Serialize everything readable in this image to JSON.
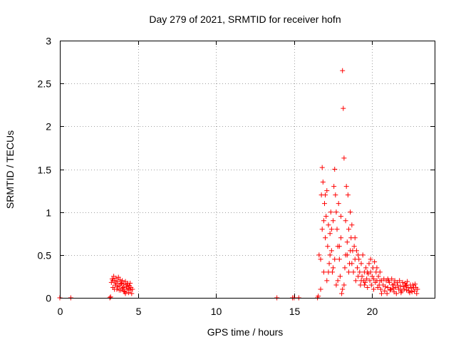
{
  "chart_data": {
    "type": "scatter",
    "title": "Day 279 of 2021, SRMTID for receiver hofn",
    "xlabel": "GPS time / hours",
    "ylabel": "SRMTID / TECUs",
    "xlim": [
      0,
      24
    ],
    "ylim": [
      0,
      3
    ],
    "xticks": [
      0,
      5,
      10,
      15,
      20
    ],
    "xtick_labels": [
      "0",
      "5",
      "10",
      "15",
      "20"
    ],
    "yticks": [
      0,
      0.5,
      1,
      1.5,
      2,
      2.5,
      3
    ],
    "ytick_labels": [
      "0",
      "0.5",
      "1",
      "1.5",
      "2",
      "2.5",
      "3"
    ],
    "grid": true,
    "marker": "+",
    "color": "#ff0000",
    "series": [
      {
        "name": "SRMTID",
        "points": [
          [
            0.0,
            0.0
          ],
          [
            0.7,
            0.0
          ],
          [
            3.2,
            0.0
          ],
          [
            3.25,
            0.01
          ],
          [
            13.9,
            0.0
          ],
          [
            14.9,
            0.0
          ],
          [
            15.0,
            0.0
          ],
          [
            15.3,
            0.0
          ],
          [
            16.5,
            0.0
          ],
          [
            16.55,
            0.02
          ],
          [
            3.3,
            0.18
          ],
          [
            3.35,
            0.22
          ],
          [
            3.4,
            0.12
          ],
          [
            3.45,
            0.25
          ],
          [
            3.5,
            0.2
          ],
          [
            3.55,
            0.15
          ],
          [
            3.6,
            0.23
          ],
          [
            3.65,
            0.1
          ],
          [
            3.7,
            0.19
          ],
          [
            3.75,
            0.24
          ],
          [
            3.8,
            0.14
          ],
          [
            3.85,
            0.21
          ],
          [
            3.9,
            0.09
          ],
          [
            3.95,
            0.17
          ],
          [
            4.0,
            0.2
          ],
          [
            4.05,
            0.12
          ],
          [
            4.1,
            0.16
          ],
          [
            4.15,
            0.07
          ],
          [
            4.2,
            0.19
          ],
          [
            4.25,
            0.13
          ],
          [
            4.3,
            0.1
          ],
          [
            4.35,
            0.17
          ],
          [
            4.4,
            0.06
          ],
          [
            4.45,
            0.14
          ],
          [
            4.5,
            0.09
          ],
          [
            4.55,
            0.12
          ],
          [
            4.6,
            0.05
          ],
          [
            4.65,
            0.1
          ],
          [
            3.5,
            0.1
          ],
          [
            3.7,
            0.13
          ],
          [
            3.9,
            0.16
          ],
          [
            4.1,
            0.08
          ],
          [
            4.3,
            0.15
          ],
          [
            4.5,
            0.17
          ],
          [
            3.4,
            0.2
          ],
          [
            3.6,
            0.17
          ],
          [
            3.8,
            0.09
          ],
          [
            4.0,
            0.11
          ],
          [
            4.2,
            0.05
          ],
          [
            4.4,
            0.11
          ],
          [
            16.6,
            0.5
          ],
          [
            16.7,
            0.45
          ],
          [
            16.75,
            1.2
          ],
          [
            16.8,
            1.52
          ],
          [
            16.85,
            1.35
          ],
          [
            16.9,
            0.9
          ],
          [
            16.95,
            1.1
          ],
          [
            17.0,
            0.7
          ],
          [
            17.05,
            0.95
          ],
          [
            17.1,
            1.25
          ],
          [
            17.15,
            0.6
          ],
          [
            17.2,
            0.85
          ],
          [
            17.25,
            0.4
          ],
          [
            17.3,
            0.75
          ],
          [
            17.35,
            1.0
          ],
          [
            17.4,
            0.55
          ],
          [
            17.45,
            0.3
          ],
          [
            17.5,
            0.9
          ],
          [
            17.55,
            1.3
          ],
          [
            17.6,
            1.5
          ],
          [
            17.65,
            1.2
          ],
          [
            17.7,
            1.0
          ],
          [
            17.75,
            0.8
          ],
          [
            17.8,
            0.6
          ],
          [
            17.85,
            1.1
          ],
          [
            17.9,
            0.45
          ],
          [
            17.95,
            0.25
          ],
          [
            18.0,
            0.7
          ],
          [
            18.05,
            0.05
          ],
          [
            18.1,
            2.65
          ],
          [
            18.15,
            2.21
          ],
          [
            18.2,
            1.63
          ],
          [
            18.25,
            0.35
          ],
          [
            18.3,
            0.9
          ],
          [
            18.35,
            1.3
          ],
          [
            18.4,
            0.5
          ],
          [
            18.45,
            1.2
          ],
          [
            18.5,
            0.8
          ],
          [
            18.55,
            0.4
          ],
          [
            18.6,
            1.0
          ],
          [
            18.65,
            0.7
          ],
          [
            18.7,
            0.85
          ],
          [
            18.75,
            0.55
          ],
          [
            18.8,
            0.3
          ],
          [
            18.85,
            0.6
          ],
          [
            18.9,
            0.45
          ],
          [
            18.95,
            0.2
          ],
          [
            19.0,
            0.55
          ],
          [
            19.05,
            0.35
          ],
          [
            19.1,
            0.25
          ],
          [
            19.15,
            0.45
          ],
          [
            19.2,
            0.3
          ],
          [
            19.25,
            0.15
          ],
          [
            19.3,
            0.4
          ],
          [
            19.35,
            0.25
          ],
          [
            19.4,
            0.5
          ],
          [
            19.45,
            0.2
          ],
          [
            19.5,
            0.3
          ],
          [
            19.55,
            0.18
          ],
          [
            19.6,
            0.35
          ],
          [
            19.65,
            0.22
          ],
          [
            19.7,
            0.12
          ],
          [
            19.75,
            0.28
          ],
          [
            19.8,
            0.4
          ],
          [
            19.85,
            0.2
          ],
          [
            19.9,
            0.3
          ],
          [
            19.95,
            0.15
          ],
          [
            20.0,
            0.25
          ],
          [
            20.05,
            0.35
          ],
          [
            20.1,
            0.22
          ],
          [
            20.15,
            0.42
          ],
          [
            20.2,
            0.18
          ],
          [
            20.25,
            0.3
          ],
          [
            20.3,
            0.2
          ],
          [
            20.35,
            0.12
          ],
          [
            20.4,
            0.25
          ],
          [
            20.45,
            0.15
          ],
          [
            20.5,
            0.3
          ],
          [
            20.55,
            0.1
          ],
          [
            20.6,
            0.2
          ],
          [
            16.7,
            0.1
          ],
          [
            16.9,
            0.3
          ],
          [
            17.1,
            0.2
          ],
          [
            17.3,
            0.5
          ],
          [
            17.5,
            0.35
          ],
          [
            17.7,
            0.15
          ],
          [
            17.9,
            0.6
          ],
          [
            18.1,
            0.1
          ],
          [
            18.3,
            0.5
          ],
          [
            18.5,
            0.3
          ],
          [
            18.7,
            0.4
          ],
          [
            18.9,
            0.7
          ],
          [
            19.1,
            0.5
          ],
          [
            19.3,
            0.2
          ],
          [
            19.5,
            0.15
          ],
          [
            19.7,
            0.3
          ],
          [
            19.9,
            0.45
          ],
          [
            20.1,
            0.1
          ],
          [
            20.3,
            0.35
          ],
          [
            20.5,
            0.2
          ],
          [
            16.8,
            0.8
          ],
          [
            17.0,
            1.2
          ],
          [
            17.2,
            0.3
          ],
          [
            17.4,
            0.8
          ],
          [
            17.6,
            0.45
          ],
          [
            17.8,
            0.2
          ],
          [
            18.0,
            0.95
          ],
          [
            18.2,
            0.15
          ],
          [
            18.4,
            0.65
          ],
          [
            18.6,
            0.55
          ],
          [
            20.7,
            0.15
          ],
          [
            20.8,
            0.08
          ],
          [
            20.9,
            0.2
          ],
          [
            21.0,
            0.12
          ],
          [
            21.1,
            0.18
          ],
          [
            21.2,
            0.1
          ],
          [
            21.3,
            0.15
          ],
          [
            21.4,
            0.07
          ],
          [
            21.5,
            0.12
          ],
          [
            21.6,
            0.18
          ],
          [
            21.7,
            0.1
          ],
          [
            21.8,
            0.14
          ],
          [
            21.9,
            0.08
          ],
          [
            22.0,
            0.13
          ],
          [
            22.1,
            0.17
          ],
          [
            22.2,
            0.09
          ],
          [
            22.3,
            0.12
          ],
          [
            22.4,
            0.06
          ],
          [
            22.5,
            0.11
          ],
          [
            22.6,
            0.15
          ],
          [
            22.7,
            0.08
          ],
          [
            22.8,
            0.12
          ],
          [
            20.75,
            0.22
          ],
          [
            20.85,
            0.13
          ],
          [
            20.95,
            0.05
          ],
          [
            21.05,
            0.2
          ],
          [
            21.15,
            0.09
          ],
          [
            21.25,
            0.22
          ],
          [
            21.35,
            0.11
          ],
          [
            21.45,
            0.2
          ],
          [
            21.55,
            0.05
          ],
          [
            21.65,
            0.14
          ],
          [
            21.75,
            0.2
          ],
          [
            21.85,
            0.06
          ],
          [
            21.95,
            0.18
          ],
          [
            22.05,
            0.1
          ],
          [
            22.15,
            0.14
          ],
          [
            22.25,
            0.19
          ],
          [
            22.35,
            0.08
          ],
          [
            22.45,
            0.15
          ],
          [
            22.55,
            0.07
          ],
          [
            22.65,
            0.12
          ],
          [
            22.75,
            0.16
          ],
          [
            22.85,
            0.05
          ],
          [
            22.9,
            0.1
          ],
          [
            20.6,
            0.05
          ],
          [
            21.0,
            0.22
          ],
          [
            21.4,
            0.16
          ],
          [
            21.8,
            0.1
          ],
          [
            22.2,
            0.15
          ]
        ]
      }
    ]
  }
}
